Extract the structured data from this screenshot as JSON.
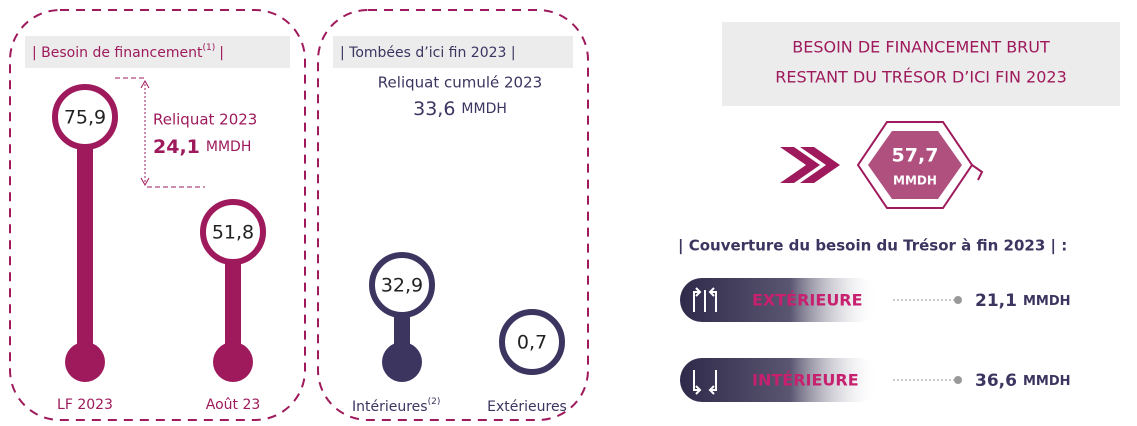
{
  "left": {
    "title": "| Besoin de financement",
    "title_note": "(1)",
    "title_end": "|",
    "lf_value": "75,9",
    "aout_value": "51,8",
    "reliquat_label": "Reliquat 2023",
    "reliquat_value": "24,1",
    "reliquat_unit": "MMDH",
    "lf_label": "LF 2023",
    "aout_label": "Août 23"
  },
  "middle": {
    "title": "| Tombées d’ici fin 2023 |",
    "reliquat_label": "Reliquat cumulé 2023",
    "reliquat_value": "33,6",
    "reliquat_unit": "MMDH",
    "int_value": "32,9",
    "ext_value": "0,7",
    "int_label": "Intérieures",
    "int_note": "(2)",
    "ext_label": "Extérieures"
  },
  "right": {
    "title_line1": "BESOIN DE FINANCEMENT BRUT",
    "title_line2": "RESTANT DU TRÉSOR D’ICI FIN 2023",
    "total_value": "57,7",
    "total_unit": "MMDH",
    "coverage_title": "| Couverture du besoin du Trésor à fin 2023 | :",
    "ext_label": "EXTÉRIEURE",
    "ext_value": "21,1",
    "ext_unit": "MMDH",
    "int_label": "INTÉRIEURE",
    "int_value": "36,6",
    "int_unit": "MMDH"
  }
}
